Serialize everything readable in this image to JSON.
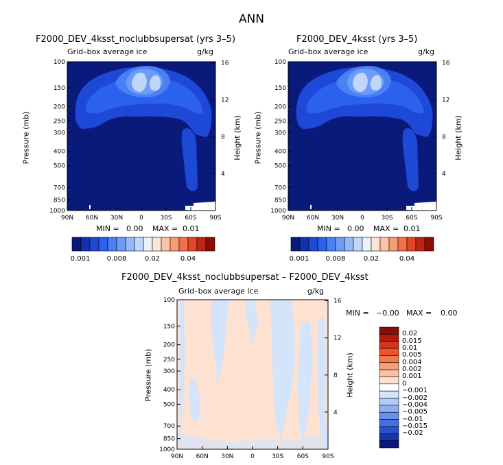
{
  "page_title": "ANN",
  "chart_data": [
    {
      "type": "contour",
      "title": "F2000_DEV_4ksst_noclubbsupersat (yrs 3–5)",
      "subtitle": "Grid–box average ice",
      "units": "g/kg",
      "ylabel": "Pressure (mb)",
      "ylabel_right": "Height (km)",
      "x_ticks": [
        "90N",
        "60N",
        "30N",
        "0",
        "30S",
        "60S",
        "90S"
      ],
      "y_ticks": [
        "100",
        "150",
        "200",
        "250",
        "300",
        "400",
        "500",
        "700",
        "850",
        "1000"
      ],
      "y_right_ticks": [
        "16",
        "12",
        "8",
        "4"
      ],
      "min_label": "MIN =",
      "min_value": "0.00",
      "max_label": "MAX =",
      "max_value": "0.01",
      "colorbar": {
        "orientation": "horizontal",
        "colors": [
          "#0a1a7a",
          "#1430b0",
          "#1e48d8",
          "#2c60ee",
          "#4a80f4",
          "#6c9cf6",
          "#94b8f8",
          "#c0d6fa",
          "#eaf2fc",
          "#fde4d4",
          "#fbc4a8",
          "#f89c74",
          "#f2704a",
          "#e24626",
          "#c22414",
          "#8c0c06"
        ],
        "labels": [
          "0.001",
          "0.008",
          "0.02",
          "0.04"
        ]
      }
    },
    {
      "type": "contour",
      "title": "F2000_DEV_4ksst (yrs 3–5)",
      "subtitle": "Grid–box average ice",
      "units": "g/kg",
      "ylabel": "Pressure (mb)",
      "ylabel_right": "Height (km)",
      "x_ticks": [
        "90N",
        "60N",
        "30N",
        "0",
        "30S",
        "60S",
        "90S"
      ],
      "y_ticks": [
        "100",
        "150",
        "200",
        "250",
        "300",
        "400",
        "500",
        "700",
        "850",
        "1000"
      ],
      "y_right_ticks": [
        "16",
        "12",
        "8",
        "4"
      ],
      "min_label": "MIN =",
      "min_value": "0.00",
      "max_label": "MAX =",
      "max_value": "0.01",
      "colorbar": {
        "orientation": "horizontal",
        "colors": [
          "#0a1a7a",
          "#1430b0",
          "#1e48d8",
          "#2c60ee",
          "#4a80f4",
          "#6c9cf6",
          "#94b8f8",
          "#c0d6fa",
          "#eaf2fc",
          "#fde4d4",
          "#fbc4a8",
          "#f89c74",
          "#f2704a",
          "#e24626",
          "#c22414",
          "#8c0c06"
        ],
        "labels": [
          "0.001",
          "0.008",
          "0.02",
          "0.04"
        ]
      }
    },
    {
      "type": "contour",
      "title": "F2000_DEV_4ksst_noclubbsupersat – F2000_DEV_4ksst",
      "subtitle": "Grid–box average ice",
      "units": "g/kg",
      "ylabel": "Pressure (mb)",
      "ylabel_right": "Height (km)",
      "x_ticks": [
        "90N",
        "60N",
        "30N",
        "0",
        "30S",
        "60S",
        "90S"
      ],
      "y_ticks": [
        "100",
        "150",
        "200",
        "250",
        "300",
        "400",
        "500",
        "700",
        "850",
        "1000"
      ],
      "y_right_ticks": [
        "16",
        "12",
        "8",
        "4"
      ],
      "min_label": "MIN =",
      "min_value": "−0.00",
      "max_label": "MAX =",
      "max_value": "0.00",
      "colorbar": {
        "orientation": "vertical",
        "colors": [
          "#8c0c06",
          "#b01c0e",
          "#d43418",
          "#ee5228",
          "#f27a4c",
          "#f6a07a",
          "#f9c2a4",
          "#fde2d2",
          "#ffffff",
          "#d4e4fa",
          "#b0ccf6",
          "#8cb0f2",
          "#6890ee",
          "#4670e2",
          "#2a50cc",
          "#1434a8",
          "#0a1a7a"
        ],
        "labels": [
          "0.02",
          "0.015",
          "0.01",
          "0.005",
          "0.004",
          "0.002",
          "0.001",
          "0",
          "−0.001",
          "−0.002",
          "−0.004",
          "−0.005",
          "−0.01",
          "−0.015",
          "−0.02"
        ]
      }
    }
  ]
}
